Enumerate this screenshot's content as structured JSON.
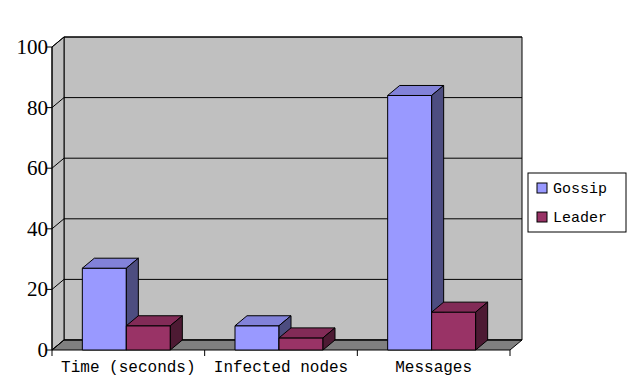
{
  "chart_data": {
    "type": "bar",
    "categories": [
      "Time (seconds)",
      "Infected nodes",
      "Messages"
    ],
    "series": [
      {
        "name": "Gossip",
        "color": "#9999ff",
        "values": [
          27,
          8,
          84
        ]
      },
      {
        "name": "Leader",
        "color": "#993366",
        "values": [
          8,
          4,
          12.5
        ]
      }
    ],
    "ylim": [
      0,
      100
    ],
    "yticks": [
      0,
      20,
      40,
      60,
      80,
      100
    ],
    "grid": true,
    "legend": "right"
  }
}
